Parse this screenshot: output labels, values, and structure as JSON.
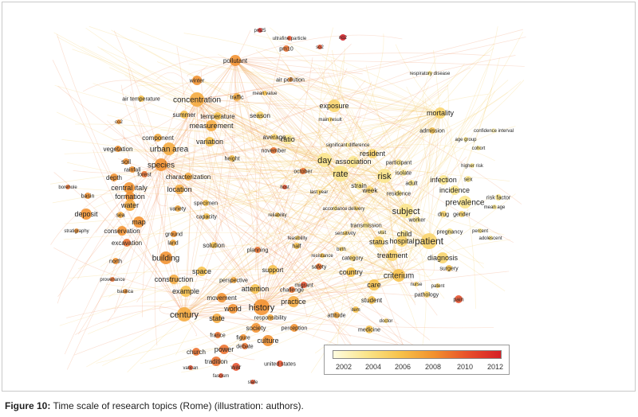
{
  "legend": {
    "ticks": [
      "2002",
      "2004",
      "2006",
      "2008",
      "2010",
      "2012"
    ],
    "colors": [
      "#fffde0",
      "#fbe58a",
      "#f7c24a",
      "#f2912e",
      "#e8502a",
      "#d61f26"
    ]
  },
  "caption": {
    "label": "Figure 10:",
    "text": "Time scale of research topics (Rome) (illustration: authors)."
  },
  "terms": [
    {
      "t": "pm25",
      "y": 2011.5
    },
    {
      "t": "ultrafine particle",
      "y": 2010
    },
    {
      "t": "no2",
      "y": 2012
    },
    {
      "t": "so2",
      "y": 2010
    },
    {
      "t": "pm10",
      "y": 2009
    },
    {
      "t": "pollutant",
      "y": 2008
    },
    {
      "t": "air pollution",
      "y": 2008
    },
    {
      "t": "winter",
      "y": 2008
    },
    {
      "t": "traffic",
      "y": 2007
    },
    {
      "t": "mean value",
      "y": 2006
    },
    {
      "t": "air temperature",
      "y": 2006
    },
    {
      "t": "concentration",
      "y": 2007
    },
    {
      "t": "summer",
      "y": 2006
    },
    {
      "t": "temperature",
      "y": 2006
    },
    {
      "t": "season",
      "y": 2005
    },
    {
      "t": "measurement",
      "y": 2007
    },
    {
      "t": "co2",
      "y": 2008
    },
    {
      "t": "component",
      "y": 2007
    },
    {
      "t": "variation",
      "y": 2006
    },
    {
      "t": "average",
      "y": 2005
    },
    {
      "t": "november",
      "y": 2009
    },
    {
      "t": "urban area",
      "y": 2007
    },
    {
      "t": "height",
      "y": 2006
    },
    {
      "t": "vegetation",
      "y": 2008
    },
    {
      "t": "soil",
      "y": 2008
    },
    {
      "t": "rainfall",
      "y": 2008
    },
    {
      "t": "species",
      "y": 2008
    },
    {
      "t": "forest",
      "y": 2009
    },
    {
      "t": "depth",
      "y": 2008
    },
    {
      "t": "characterization",
      "y": 2007
    },
    {
      "t": "central italy",
      "y": 2008
    },
    {
      "t": "formation",
      "y": 2008
    },
    {
      "t": "location",
      "y": 2007
    },
    {
      "t": "basin",
      "y": 2008
    },
    {
      "t": "borehole",
      "y": 2009
    },
    {
      "t": "water",
      "y": 2007
    },
    {
      "t": "deposit",
      "y": 2008
    },
    {
      "t": "sea",
      "y": 2007
    },
    {
      "t": "map",
      "y": 2008
    },
    {
      "t": "variety",
      "y": 2007
    },
    {
      "t": "specimen",
      "y": 2006
    },
    {
      "t": "capacity",
      "y": 2006
    },
    {
      "t": "stratigraphy",
      "y": 2008
    },
    {
      "t": "conservation",
      "y": 2008
    },
    {
      "t": "excavation",
      "y": 2009
    },
    {
      "t": "ground",
      "y": 2008
    },
    {
      "t": "land",
      "y": 2007
    },
    {
      "t": "solution",
      "y": 2006
    },
    {
      "t": "north",
      "y": 2008
    },
    {
      "t": "building",
      "y": 2008
    },
    {
      "t": "construction",
      "y": 2007
    },
    {
      "t": "space",
      "y": 2006
    },
    {
      "t": "provenance",
      "y": 2009
    },
    {
      "t": "basilica",
      "y": 2008
    },
    {
      "t": "example",
      "y": 2006
    },
    {
      "t": "century",
      "y": 2007
    },
    {
      "t": "movement",
      "y": 2008
    },
    {
      "t": "world",
      "y": 2008
    },
    {
      "t": "history",
      "y": 2008
    },
    {
      "t": "state",
      "y": 2007
    },
    {
      "t": "society",
      "y": 2008
    },
    {
      "t": "culture",
      "y": 2008
    },
    {
      "t": "france",
      "y": 2009
    },
    {
      "t": "figure",
      "y": 2008
    },
    {
      "t": "debate",
      "y": 2009
    },
    {
      "t": "church",
      "y": 2009
    },
    {
      "t": "power",
      "y": 2009
    },
    {
      "t": "tradition",
      "y": 2009
    },
    {
      "t": "war",
      "y": 2010
    },
    {
      "t": "vatican",
      "y": 2010
    },
    {
      "t": "fascism",
      "y": 2010
    },
    {
      "t": "slafe",
      "y": 2010
    },
    {
      "t": "united states",
      "y": 2010
    },
    {
      "t": "perception",
      "y": 2008
    },
    {
      "t": "attention",
      "y": 2006
    },
    {
      "t": "practice",
      "y": 2007
    },
    {
      "t": "challenge",
      "y": 2009
    },
    {
      "t": "migrant",
      "y": 2010
    },
    {
      "t": "perspective",
      "y": 2007
    },
    {
      "t": "responsibility",
      "y": 2007
    },
    {
      "t": "planning",
      "y": 2009
    },
    {
      "t": "support",
      "y": 2006
    },
    {
      "t": "attitude",
      "y": 2007
    },
    {
      "t": "exposure",
      "y": 2005
    },
    {
      "t": "main result",
      "y": 2005
    },
    {
      "t": "mortality",
      "y": 2005
    },
    {
      "t": "admission",
      "y": 2006
    },
    {
      "t": "age group",
      "y": 2004
    },
    {
      "t": "cohort",
      "y": 2004
    },
    {
      "t": "ratio",
      "y": 2004
    },
    {
      "t": "day",
      "y": 2004
    },
    {
      "t": "association",
      "y": 2004
    },
    {
      "t": "resident",
      "y": 2005
    },
    {
      "t": "participant",
      "y": 2004
    },
    {
      "t": "october",
      "y": 2009
    },
    {
      "t": "rate",
      "y": 2004
    },
    {
      "t": "risk",
      "y": 2004
    },
    {
      "t": "isolate",
      "y": 2004
    },
    {
      "t": "adult",
      "y": 2004
    },
    {
      "t": "strain",
      "y": 2004
    },
    {
      "t": "week",
      "y": 2005
    },
    {
      "t": "residence",
      "y": 2004
    },
    {
      "t": "host",
      "y": 2010
    },
    {
      "t": "last year",
      "y": 2005
    },
    {
      "t": "infection",
      "y": 2004
    },
    {
      "t": "incidence",
      "y": 2004
    },
    {
      "t": "higher risk",
      "y": 2004
    },
    {
      "t": "sex",
      "y": 2004
    },
    {
      "t": "risk factor",
      "y": 2004
    },
    {
      "t": "prevalence",
      "y": 2004
    },
    {
      "t": "mean age",
      "y": 2004
    },
    {
      "t": "subject",
      "y": 2004
    },
    {
      "t": "drug",
      "y": 2005
    },
    {
      "t": "gender",
      "y": 2005
    },
    {
      "t": "reliability",
      "y": 2006
    },
    {
      "t": "accordance",
      "y": 2004
    },
    {
      "t": "delivery",
      "y": 2005
    },
    {
      "t": "worker",
      "y": 2004
    },
    {
      "t": "pregnancy",
      "y": 2004
    },
    {
      "t": "percent",
      "y": 2004
    },
    {
      "t": "transmission",
      "y": 2004
    },
    {
      "t": "visit",
      "y": 2004
    },
    {
      "t": "child",
      "y": 2004
    },
    {
      "t": "hospital",
      "y": 2005
    },
    {
      "t": "patient",
      "y": 2005
    },
    {
      "t": "adolescent",
      "y": 2004
    },
    {
      "t": "sensitivity",
      "y": 2005
    },
    {
      "t": "status",
      "y": 2005
    },
    {
      "t": "feasibility",
      "y": 2005
    },
    {
      "t": "birth",
      "y": 2005
    },
    {
      "t": "half",
      "y": 2006
    },
    {
      "t": "resistance",
      "y": 2006
    },
    {
      "t": "category",
      "y": 2005
    },
    {
      "t": "treatment",
      "y": 2005
    },
    {
      "t": "diagnosis",
      "y": 2005
    },
    {
      "t": "surgery",
      "y": 2006
    },
    {
      "t": "safety",
      "y": 2009
    },
    {
      "t": "country",
      "y": 2006
    },
    {
      "t": "criterium",
      "y": 2006
    },
    {
      "t": "nurse",
      "y": 2005
    },
    {
      "t": "patent",
      "y": 2005
    },
    {
      "t": "care",
      "y": 2006
    },
    {
      "t": "pathology",
      "y": 2005
    },
    {
      "t": "pain",
      "y": 2010
    },
    {
      "t": "student",
      "y": 2006
    },
    {
      "t": "item",
      "y": 2006
    },
    {
      "t": "doctor",
      "y": 2005
    },
    {
      "t": "medicine",
      "y": 2006
    },
    {
      "t": "respiratory disease",
      "y": 2004
    },
    {
      "t": "confidence interval",
      "y": 2003
    },
    {
      "t": "significant difference",
      "y": 2004
    }
  ]
}
